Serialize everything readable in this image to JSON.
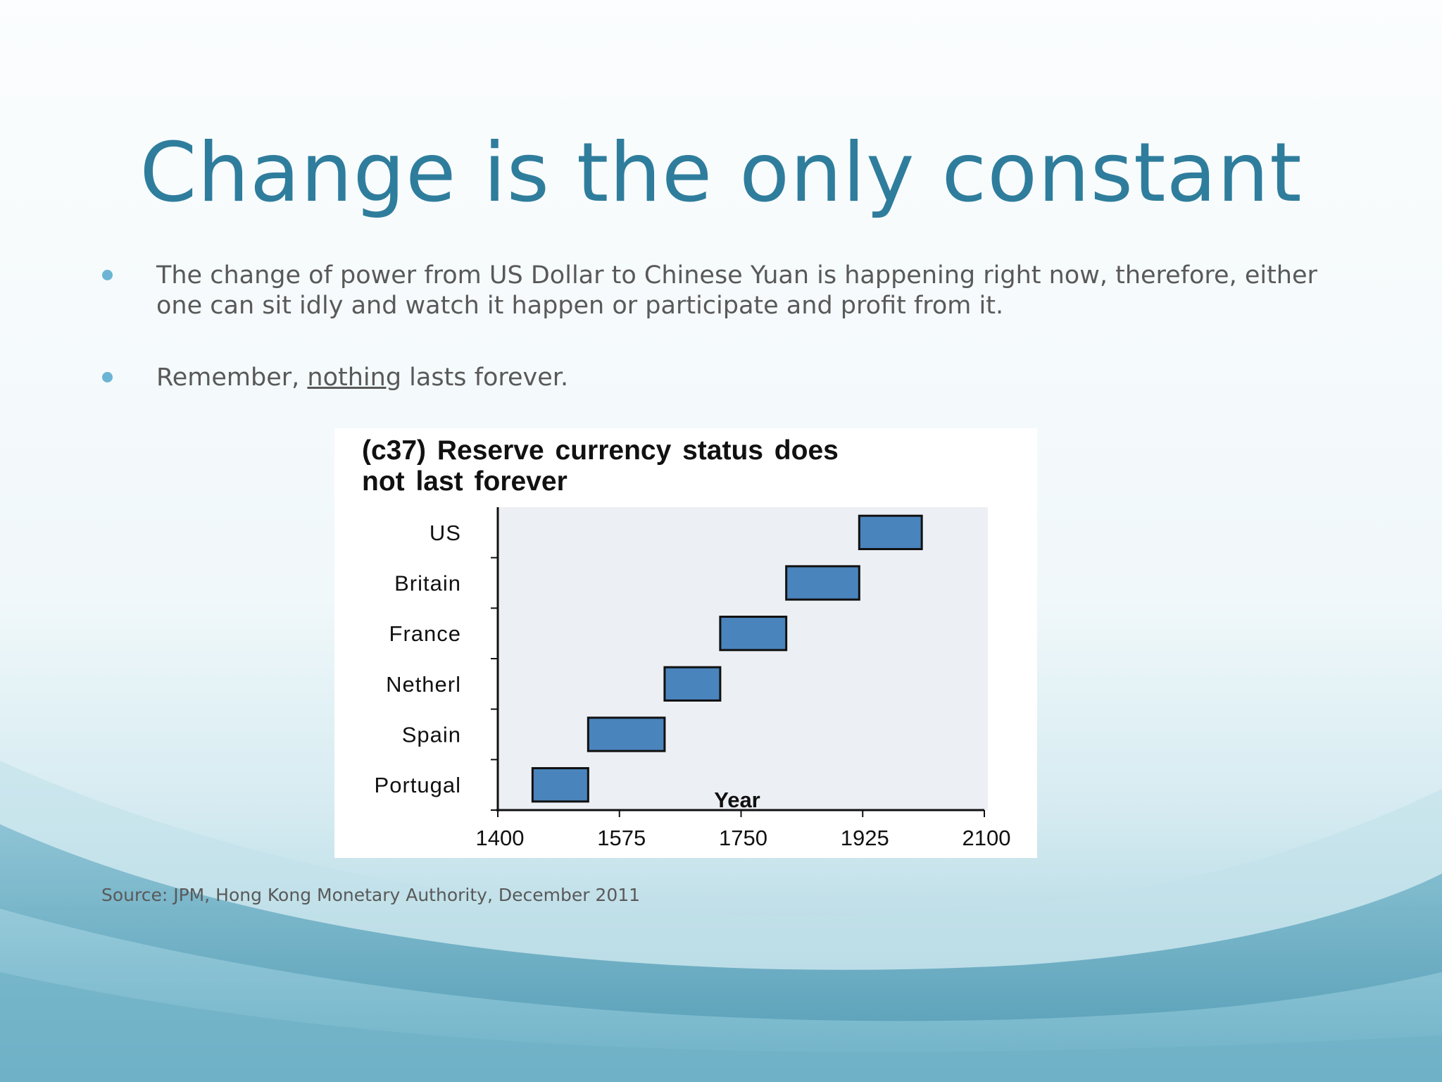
{
  "slide": {
    "title": "Change is the only constant",
    "bullets": [
      {
        "text": "The change of  power from US Dollar to Chinese Yuan is happening right now, therefore, either one can sit idly and watch it happen or participate and profit from it."
      },
      {
        "before": "Remember, ",
        "underlined": "nothing",
        "after": " lasts forever."
      }
    ],
    "source": "Source: JPM, Hong Kong Monetary Authority, December 2011"
  },
  "colors": {
    "title": "#2f7d9c",
    "bullet": "#6cb4d4",
    "bar_fill": "#4a84bd",
    "bar_stroke": "#111111",
    "plot_bg": "#eceff3"
  },
  "chart_data": {
    "type": "bar",
    "orientation": "horizontal-range",
    "title": "(c37) Reserve currency status does not last forever",
    "title_lines": [
      "(c37) Reserve currency status does",
      "not last forever"
    ],
    "xlabel": "Year",
    "ylabel": "",
    "xlim": [
      1400,
      2100
    ],
    "xticks": [
      1400,
      1575,
      1750,
      1925,
      2100
    ],
    "grid": false,
    "categories": [
      "US",
      "Britain",
      "France",
      "Netherl",
      "Spain",
      "Portugal"
    ],
    "series": [
      {
        "ranges": [
          [
            1920,
            2010
          ],
          [
            1815,
            1920
          ],
          [
            1720,
            1815
          ],
          [
            1640,
            1720
          ],
          [
            1530,
            1640
          ],
          [
            1450,
            1530
          ]
        ]
      }
    ]
  }
}
